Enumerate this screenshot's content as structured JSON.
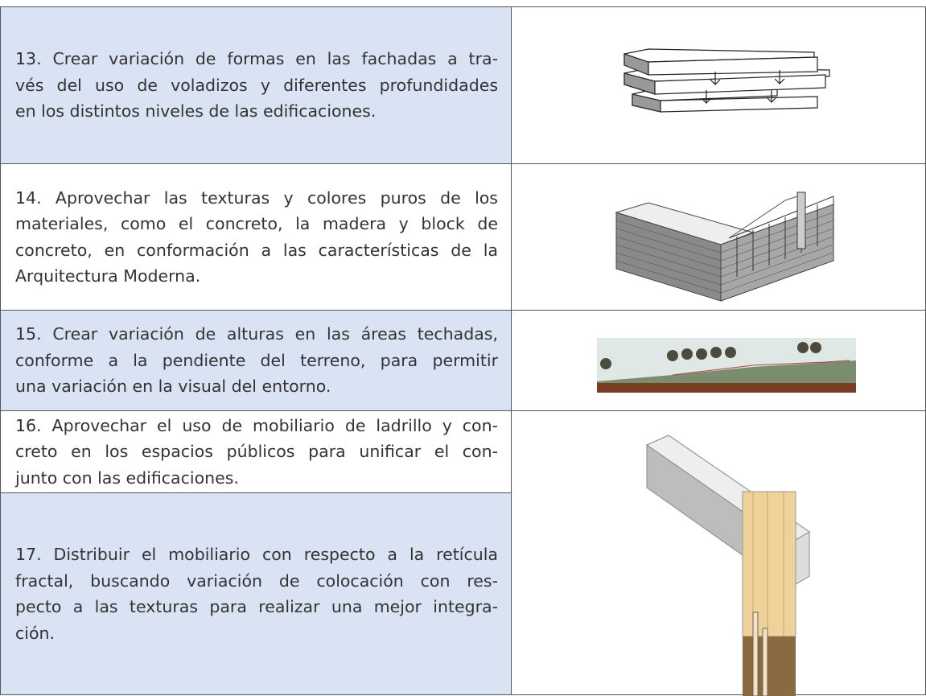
{
  "table": {
    "rows": [
      {
        "lines": [
          "13. Crear variación de formas en las fachadas a tra-",
          "vés del uso de voladizos y diferentes profundidades",
          "en los distintos niveles de las edificaciones."
        ]
      },
      {
        "lines": [
          "14. Aprovechar las texturas y colores puros de los",
          "materiales, como el concreto, la madera y block de",
          "concreto, en conformación a las características de la",
          "Arquitectura Moderna."
        ]
      },
      {
        "lines": [
          "15. Crear variación de alturas en las áreas techadas,",
          "conforme a la pendiente del terreno, para permitir",
          "una variación en la visual del entorno."
        ]
      },
      {
        "lines": [
          "16. Aprovechar el uso de mobiliario de ladrillo y con-",
          "creto en los espacios públicos para unificar el con-",
          "junto con las edificaciones."
        ]
      },
      {
        "lines": [
          "17. Distribuir el mobiliario con respecto a la retícula",
          "fractal, buscando variación de colocación con res-",
          "pecto a las texturas para realizar una mejor integra-",
          "ción."
        ]
      }
    ]
  }
}
